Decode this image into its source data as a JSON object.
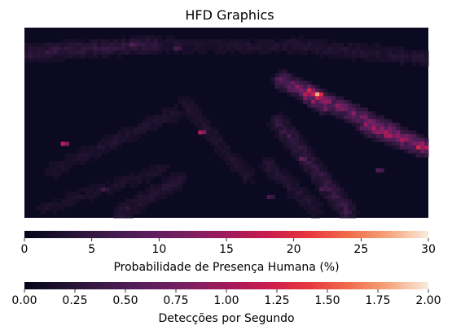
{
  "chart_data": {
    "type": "heatmap",
    "title": "HFD Graphics",
    "grid": false,
    "description_of_hotspots": "dark heatmap with faint diagonal streaks; brightest around mid-right and right edge",
    "colorbars": [
      {
        "label": "Probabilidade de Presença Humana (%)",
        "range": [
          0,
          30
        ],
        "ticks": [
          "0",
          "5",
          "10",
          "15",
          "20",
          "25",
          "30"
        ],
        "tick_values": [
          0,
          5,
          10,
          15,
          20,
          25,
          30
        ],
        "colormap": "rocket"
      },
      {
        "label": "Detecções por Segundo",
        "range": [
          0.0,
          2.0
        ],
        "ticks": [
          "0.00",
          "0.25",
          "0.50",
          "0.75",
          "1.00",
          "1.25",
          "1.50",
          "1.75",
          "2.00"
        ],
        "tick_values": [
          0.0,
          0.25,
          0.5,
          0.75,
          1.0,
          1.25,
          1.5,
          1.75,
          2.0
        ],
        "colormap": "rocket"
      }
    ],
    "heatmap": {
      "value_units": "%",
      "value_range": [
        0,
        30
      ],
      "background_value": 0.5,
      "streaks": [
        {
          "from": [
            0.01,
            0.13
          ],
          "to": [
            0.32,
            0.09
          ],
          "peak": 5
        },
        {
          "from": [
            0.32,
            0.09
          ],
          "to": [
            0.66,
            0.1
          ],
          "peak": 2.5
        },
        {
          "from": [
            0.66,
            0.09
          ],
          "to": [
            0.99,
            0.16
          ],
          "peak": 3
        },
        {
          "from": [
            0.64,
            0.28
          ],
          "to": [
            0.99,
            0.63
          ],
          "peak": 14
        },
        {
          "from": [
            0.7,
            0.34
          ],
          "to": [
            0.74,
            0.4
          ],
          "peak": 22
        },
        {
          "from": [
            0.63,
            0.5
          ],
          "to": [
            0.8,
            0.97
          ],
          "peak": 6
        },
        {
          "from": [
            0.4,
            0.4
          ],
          "to": [
            0.55,
            0.78
          ],
          "peak": 2.5
        },
        {
          "from": [
            0.07,
            0.75
          ],
          "to": [
            0.37,
            0.45
          ],
          "peak": 2.5
        },
        {
          "from": [
            0.05,
            0.95
          ],
          "to": [
            0.34,
            0.75
          ],
          "peak": 2
        },
        {
          "from": [
            0.24,
            0.97
          ],
          "to": [
            0.38,
            0.8
          ],
          "peak": 3.5
        },
        {
          "from": [
            0.6,
            0.72
          ],
          "to": [
            0.72,
            0.95
          ],
          "peak": 3
        },
        {
          "from": [
            0.85,
            0.52
          ],
          "to": [
            0.99,
            0.63
          ],
          "peak": 18
        }
      ],
      "hot_cells": [
        {
          "at": [
            0.72,
            0.34
          ],
          "value": 26
        },
        {
          "at": [
            0.7,
            0.33
          ],
          "value": 18
        },
        {
          "at": [
            0.975,
            0.63
          ],
          "value": 18
        },
        {
          "at": [
            0.095,
            0.6
          ],
          "value": 16
        },
        {
          "at": [
            0.43,
            0.55
          ],
          "value": 15
        },
        {
          "at": [
            0.93,
            0.59
          ],
          "value": 12
        },
        {
          "at": [
            0.68,
            0.68
          ],
          "value": 9
        },
        {
          "at": [
            0.26,
            0.09
          ],
          "value": 7
        },
        {
          "at": [
            0.37,
            0.11
          ],
          "value": 6
        },
        {
          "at": [
            0.73,
            0.85
          ],
          "value": 6
        },
        {
          "at": [
            0.87,
            0.75
          ],
          "value": 7
        },
        {
          "at": [
            0.19,
            0.85
          ],
          "value": 5
        },
        {
          "at": [
            0.6,
            0.88
          ],
          "value": 5
        }
      ]
    }
  }
}
